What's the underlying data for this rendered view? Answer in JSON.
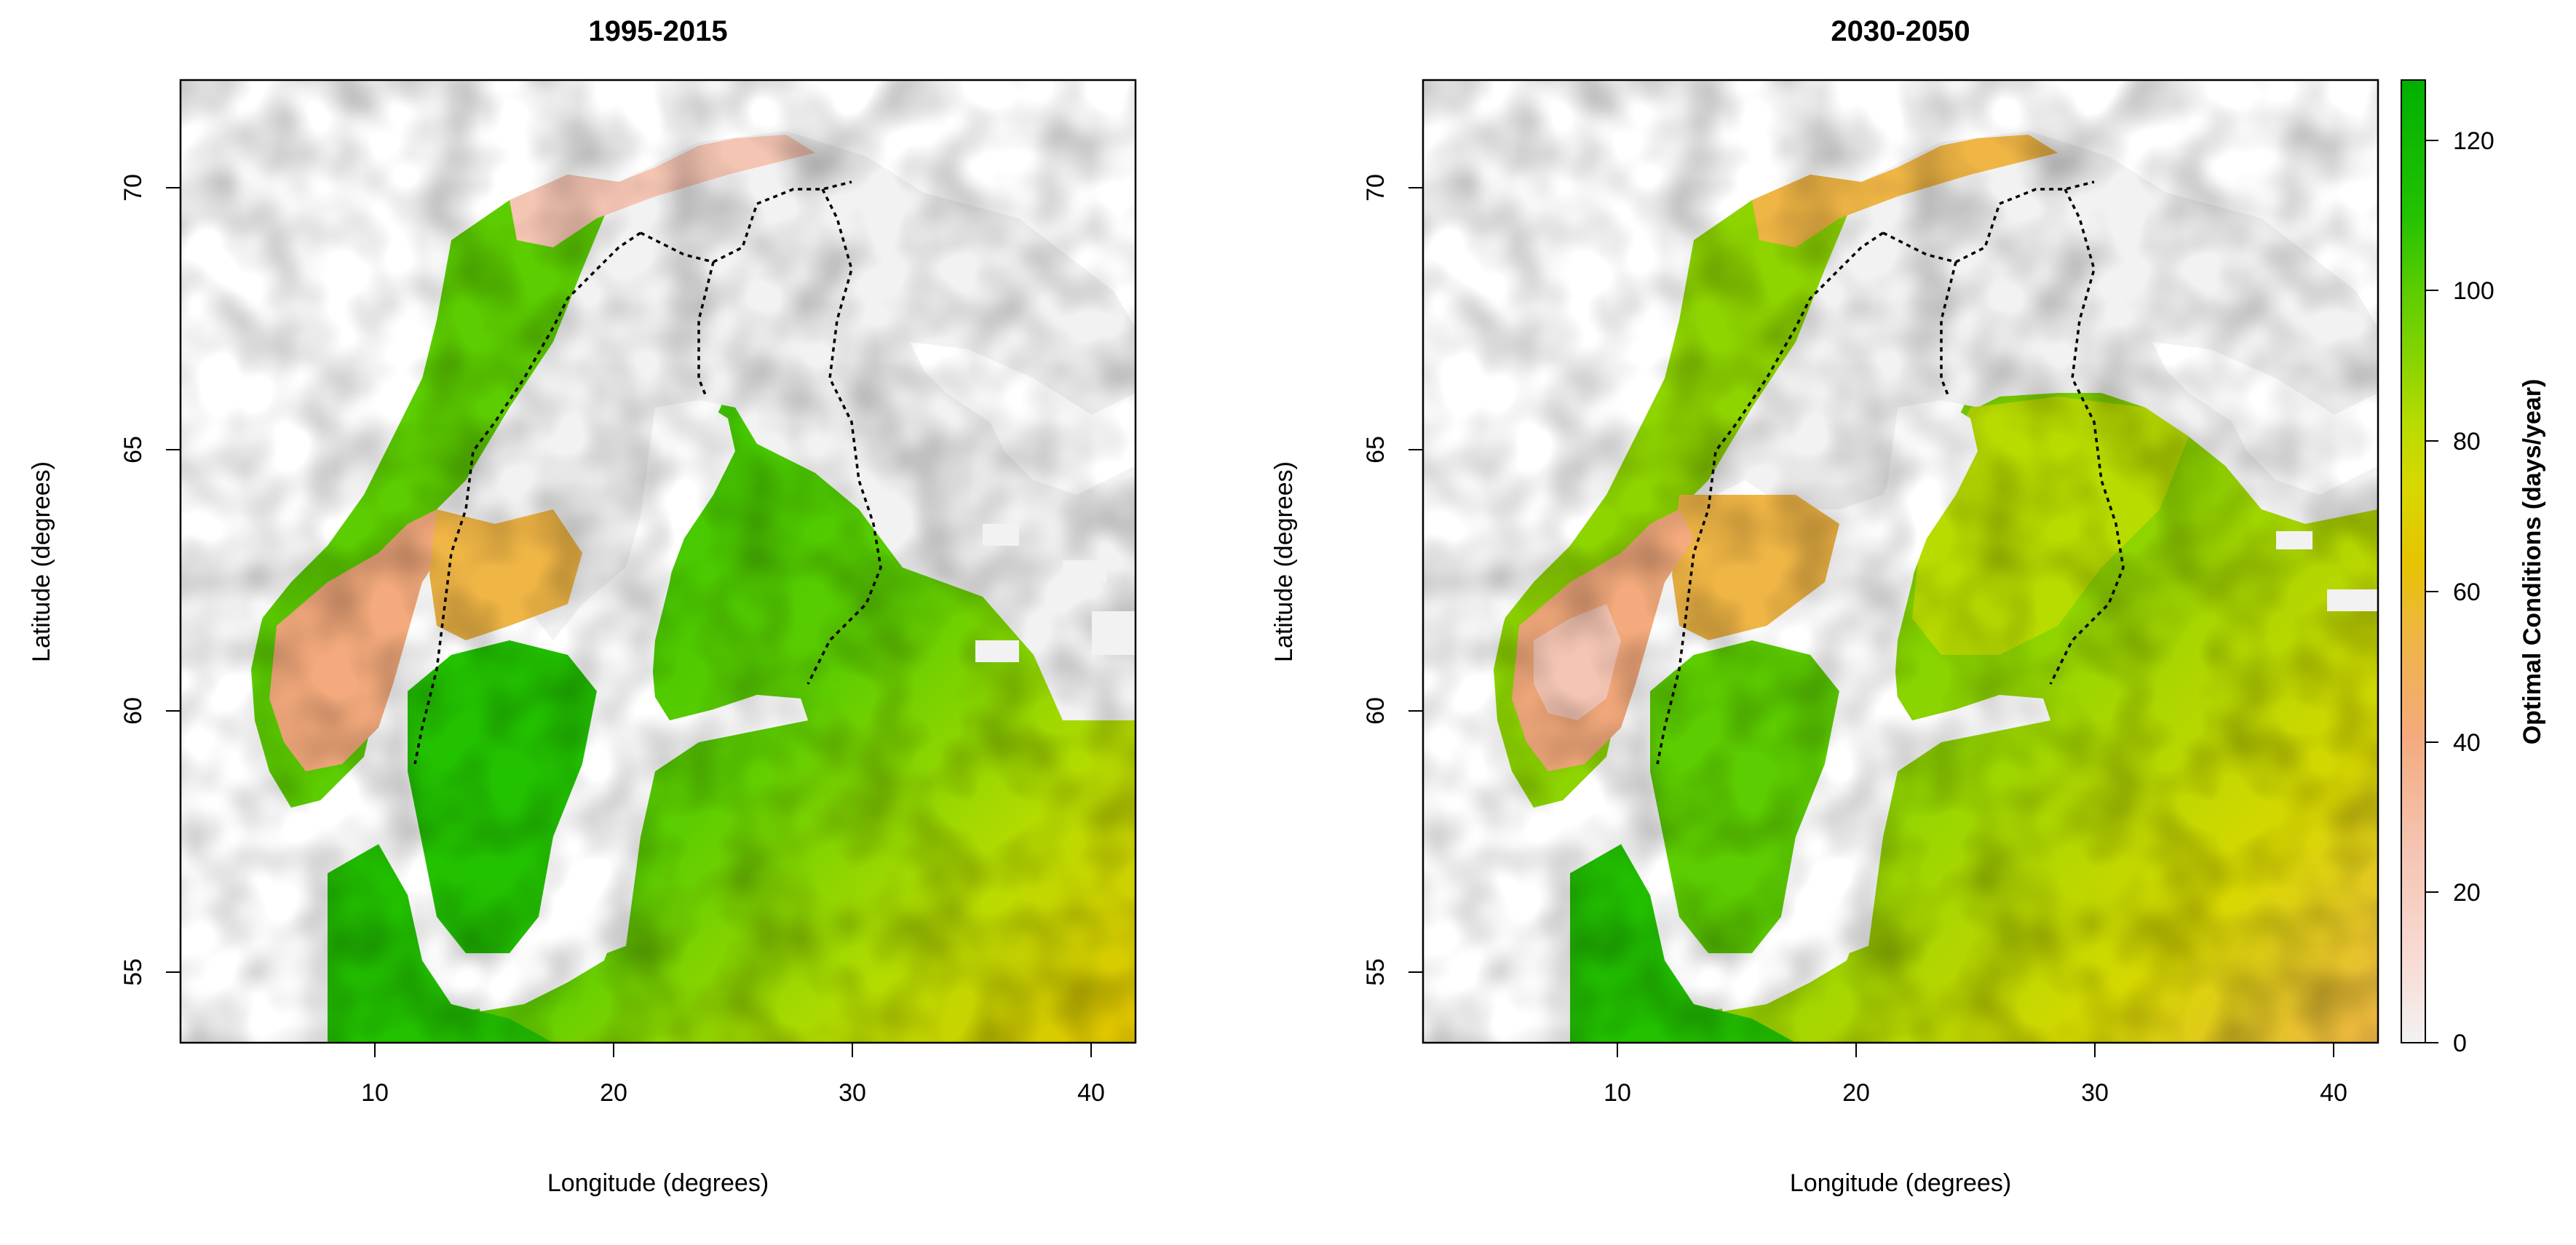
{
  "panels": [
    {
      "title": "1995-2015",
      "xlabel": "Longitude (degrees)",
      "ylabel": "Latitude (degrees)",
      "xlim": [
        2,
        42
      ],
      "ylim": [
        53.6,
        72
      ],
      "xticks": [
        10,
        20,
        30,
        40
      ],
      "yticks": [
        55,
        60,
        65,
        70
      ],
      "tick_labels_x": [
        "10",
        "20",
        "30",
        "40"
      ],
      "tick_labels_y": [
        "55",
        "60",
        "65",
        "70"
      ]
    },
    {
      "title": "2030-2050",
      "xlabel": "Longitude (degrees)",
      "ylabel": "Latitude (degrees)",
      "xlim": [
        2,
        42
      ],
      "ylim": [
        53.6,
        72
      ],
      "xticks": [
        10,
        20,
        30,
        40
      ],
      "yticks": [
        55,
        60,
        65,
        70
      ],
      "tick_labels_x": [
        "10",
        "20",
        "30",
        "40"
      ],
      "tick_labels_y": [
        "55",
        "60",
        "65",
        "70"
      ]
    }
  ],
  "legend": {
    "title": "Optimal Conditions (days/year)",
    "range": [
      0,
      128
    ],
    "ticks": [
      0,
      20,
      40,
      60,
      80,
      100,
      120
    ],
    "tick_labels": [
      "0",
      "20",
      "40",
      "60",
      "80",
      "100",
      "120"
    ],
    "colors": [
      "#f2f2f2",
      "#f8dcd6",
      "#f5c5b3",
      "#f4aa7c",
      "#efb545",
      "#e6c400",
      "#d7d800",
      "#b9dc00",
      "#8ed500",
      "#5ccd00",
      "#22c200",
      "#00b000"
    ]
  },
  "colors": {
    "no_data": "#ffffff",
    "zero_days": "#f2f2f2",
    "border_line": "#000000"
  }
}
